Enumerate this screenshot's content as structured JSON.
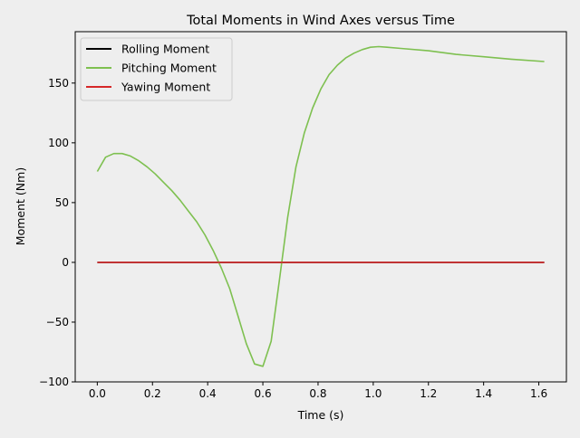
{
  "chart_data": {
    "type": "line",
    "title": "Total Moments in Wind Axes versus Time",
    "xlabel": "Time (s)",
    "ylabel": "Moment (Nm)",
    "xlim": [
      -0.08,
      1.7
    ],
    "ylim": [
      -100,
      193
    ],
    "xticks": [
      0.0,
      0.2,
      0.4,
      0.6,
      0.8,
      1.0,
      1.2,
      1.4,
      1.6
    ],
    "xtick_labels": [
      "0.0",
      "0.2",
      "0.4",
      "0.6",
      "0.8",
      "1.0",
      "1.2",
      "1.4",
      "1.6"
    ],
    "yticks": [
      -100,
      -50,
      0,
      50,
      100,
      150
    ],
    "ytick_labels": [
      "−100",
      "−50",
      "0",
      "50",
      "100",
      "150"
    ],
    "grid": false,
    "legend_position": "top-left",
    "series": [
      {
        "name": "Rolling Moment",
        "color": "#000000",
        "x": [
          0.0,
          1.62
        ],
        "y": [
          0,
          0
        ]
      },
      {
        "name": "Pitching Moment",
        "color": "#7ec050",
        "x": [
          0.0,
          0.03,
          0.06,
          0.09,
          0.12,
          0.15,
          0.18,
          0.21,
          0.24,
          0.27,
          0.3,
          0.33,
          0.36,
          0.39,
          0.42,
          0.45,
          0.48,
          0.51,
          0.54,
          0.57,
          0.6,
          0.63,
          0.66,
          0.69,
          0.72,
          0.75,
          0.78,
          0.81,
          0.84,
          0.87,
          0.9,
          0.93,
          0.96,
          0.99,
          1.02,
          1.05,
          1.1,
          1.2,
          1.3,
          1.4,
          1.5,
          1.62
        ],
        "y": [
          76,
          88,
          91,
          91,
          89,
          85,
          80,
          74,
          67,
          60,
          52,
          43,
          34,
          23,
          10,
          -5,
          -22,
          -45,
          -68,
          -85,
          -87,
          -66,
          -15,
          38,
          80,
          108,
          129,
          145,
          157,
          165,
          171,
          175,
          178,
          180,
          180.5,
          180,
          179,
          177,
          174,
          172,
          170,
          168
        ]
      },
      {
        "name": "Yawing Moment",
        "color": "#d62728",
        "x": [
          0.0,
          1.62
        ],
        "y": [
          0,
          0
        ]
      }
    ]
  }
}
